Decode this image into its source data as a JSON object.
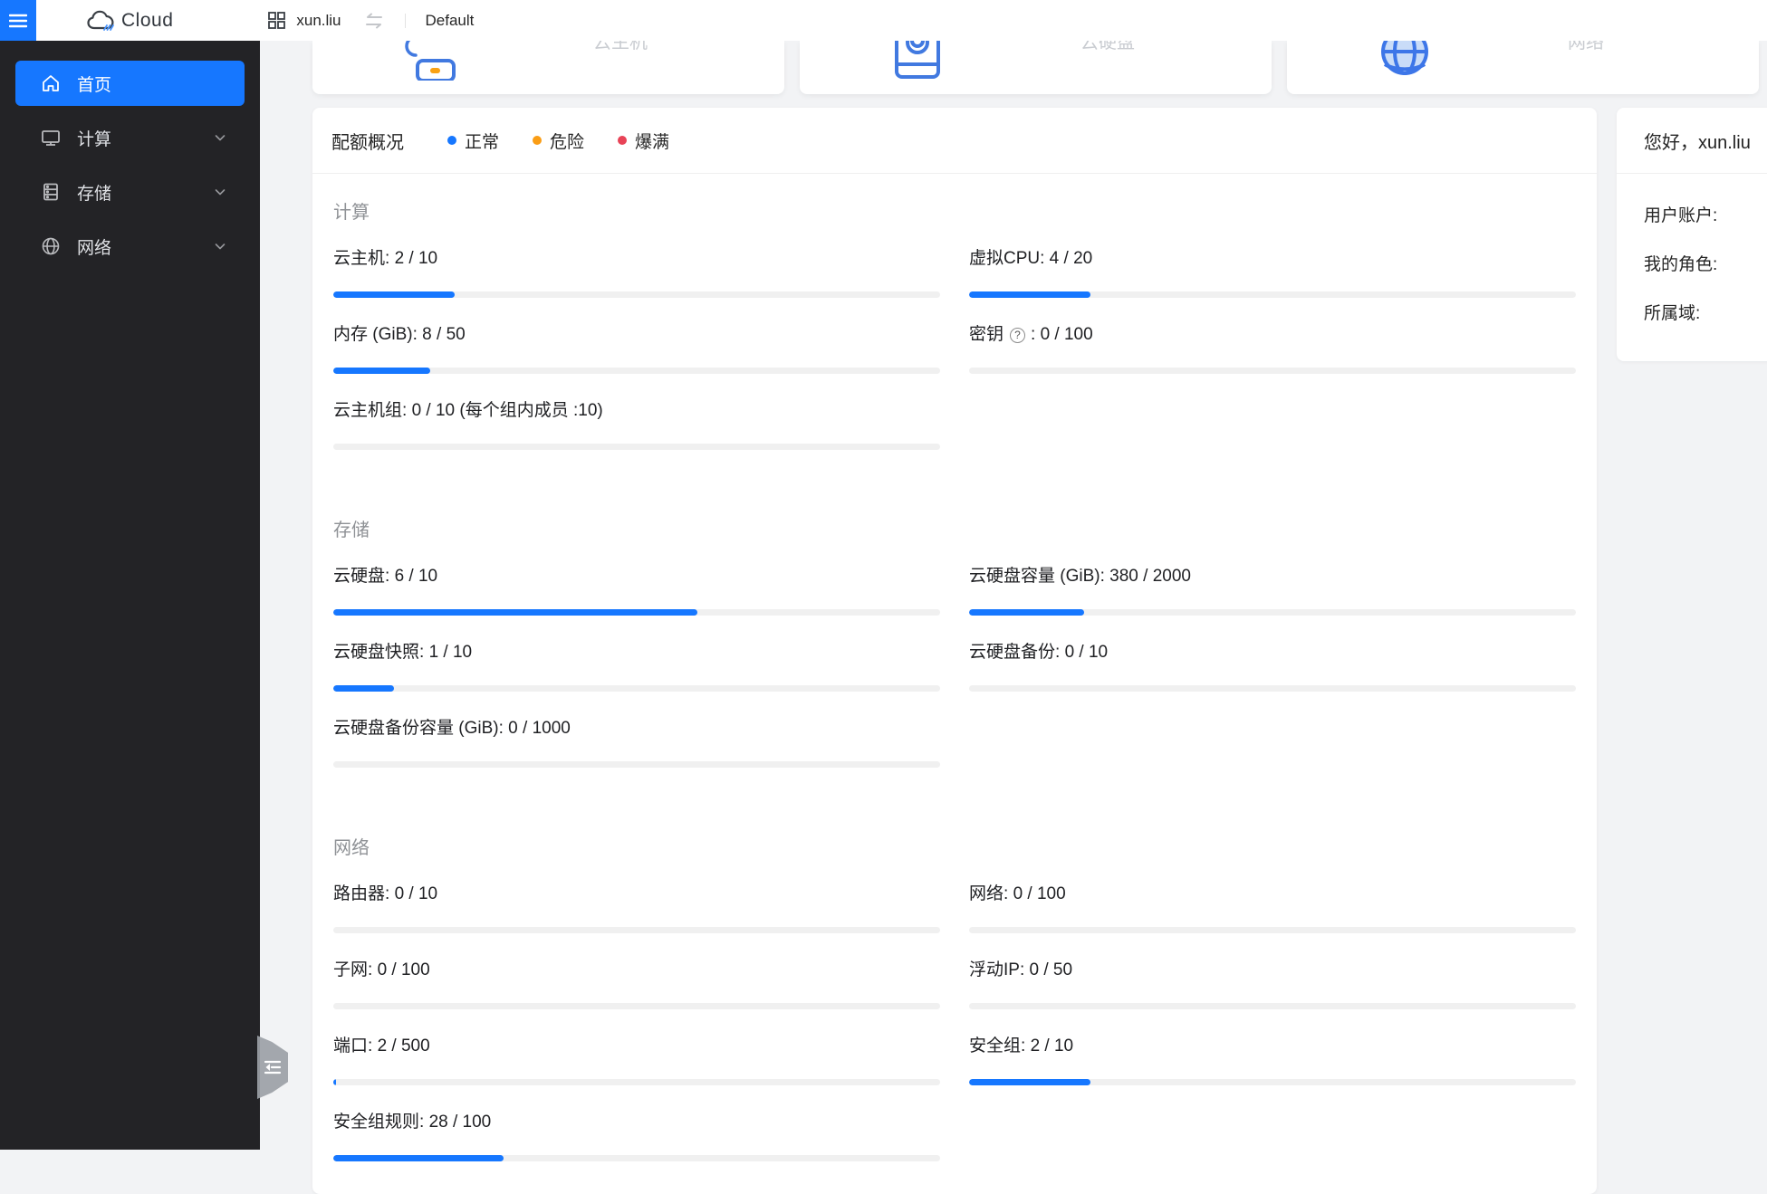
{
  "topbar": {
    "brand": "Cloud",
    "hamburger_icon": "menu-icon",
    "brand_icon": "cloud-logo-icon",
    "workspace": {
      "icon": "app-grid-icon",
      "name": "xun.liu",
      "switch_icon": "swap-icon",
      "region": "Default"
    }
  },
  "sidebar": {
    "items": [
      {
        "label": "首页",
        "icon": "home-icon",
        "active": true,
        "chevron": false
      },
      {
        "label": "计算",
        "icon": "monitor-icon",
        "active": false,
        "chevron": true
      },
      {
        "label": "存储",
        "icon": "storage-icon",
        "active": false,
        "chevron": true
      },
      {
        "label": "网络",
        "icon": "globe-icon",
        "active": false,
        "chevron": true
      }
    ]
  },
  "summary_cards": [
    {
      "label": "云主机",
      "icon": "cloud-server-icon"
    },
    {
      "label": "云硬盘",
      "icon": "volume-disk-icon"
    },
    {
      "label": "网络",
      "icon": "network-globe-icon"
    }
  ],
  "quota": {
    "title": "配额概况",
    "legend": [
      {
        "label": "正常",
        "color": "#1677ff"
      },
      {
        "label": "危险",
        "color": "#fa9d15"
      },
      {
        "label": "爆满",
        "color": "#e84357"
      }
    ],
    "bar_color_normal": "#1677ff",
    "sections": [
      {
        "title": "计算",
        "items": [
          {
            "label": "云主机",
            "used": 2,
            "total": 10,
            "help": false,
            "suffix": ""
          },
          {
            "label": "虚拟CPU",
            "used": 4,
            "total": 20,
            "help": false,
            "suffix": ""
          },
          {
            "label": "内存 (GiB)",
            "used": 8,
            "total": 50,
            "help": false,
            "suffix": ""
          },
          {
            "label": "密钥",
            "used": 0,
            "total": 100,
            "help": true,
            "suffix": ""
          },
          {
            "label": "云主机组",
            "used": 0,
            "total": 10,
            "help": false,
            "suffix": " (每个组内成员 :10)"
          }
        ]
      },
      {
        "title": "存储",
        "items": [
          {
            "label": "云硬盘",
            "used": 6,
            "total": 10,
            "help": false,
            "suffix": ""
          },
          {
            "label": "云硬盘容量 (GiB)",
            "used": 380,
            "total": 2000,
            "help": false,
            "suffix": ""
          },
          {
            "label": "云硬盘快照",
            "used": 1,
            "total": 10,
            "help": false,
            "suffix": ""
          },
          {
            "label": "云硬盘备份",
            "used": 0,
            "total": 10,
            "help": false,
            "suffix": ""
          },
          {
            "label": "云硬盘备份容量 (GiB)",
            "used": 0,
            "total": 1000,
            "help": false,
            "suffix": ""
          }
        ]
      },
      {
        "title": "网络",
        "items": [
          {
            "label": "路由器",
            "used": 0,
            "total": 10,
            "help": false,
            "suffix": ""
          },
          {
            "label": "网络",
            "used": 0,
            "total": 100,
            "help": false,
            "suffix": ""
          },
          {
            "label": "子网",
            "used": 0,
            "total": 100,
            "help": false,
            "suffix": ""
          },
          {
            "label": "浮动IP",
            "used": 0,
            "total": 50,
            "help": false,
            "suffix": ""
          },
          {
            "label": "端口",
            "used": 2,
            "total": 500,
            "help": false,
            "suffix": ""
          },
          {
            "label": "安全组",
            "used": 2,
            "total": 10,
            "help": false,
            "suffix": ""
          },
          {
            "label": "安全组规则",
            "used": 28,
            "total": 100,
            "help": false,
            "suffix": ""
          }
        ]
      }
    ]
  },
  "user_panel": {
    "greeting": "您好，xun.liu",
    "fields": [
      "用户账户:",
      "我的角色:",
      "所属域:"
    ]
  },
  "misc": {
    "help_glyph": "?",
    "console_handle_icon": "collapse-console-icon"
  }
}
